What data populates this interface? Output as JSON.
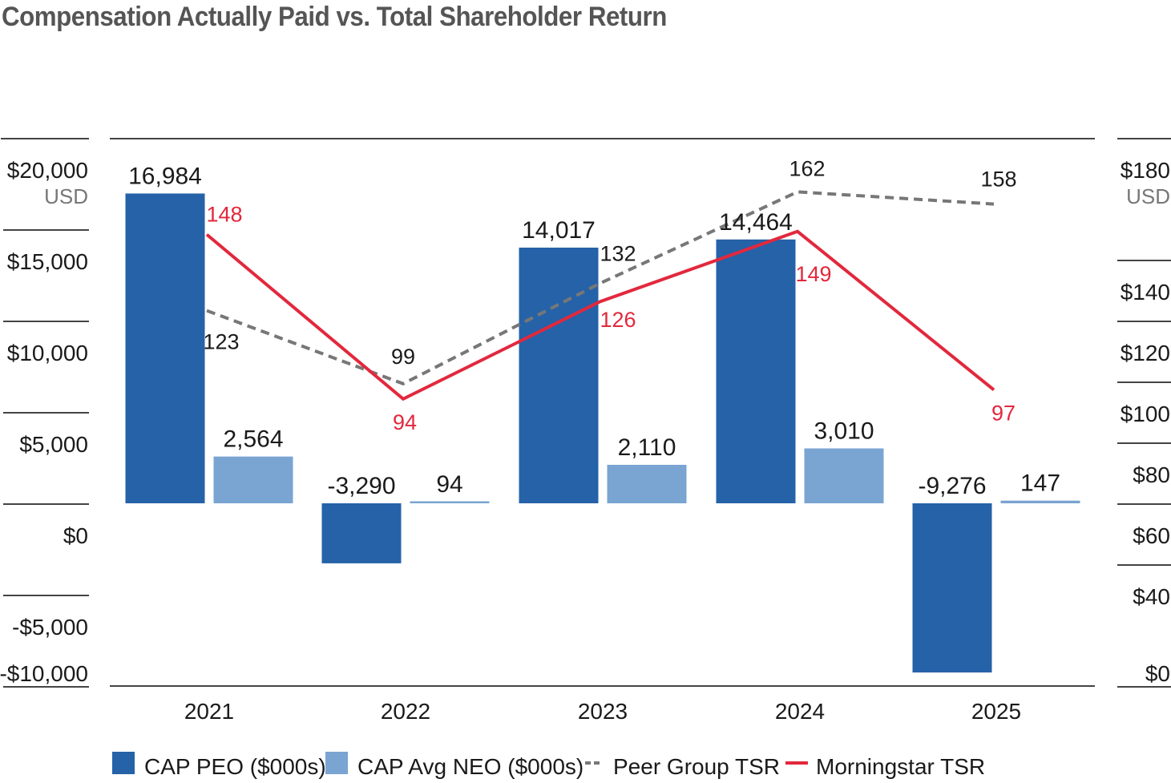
{
  "chart_data": {
    "type": "bar",
    "title": "Compensation Actually Paid vs. Total Shareholder Return",
    "categories": [
      "2021",
      "2022",
      "2023",
      "2024",
      "2025"
    ],
    "left_axis": {
      "unit": "USD",
      "ticks": [
        {
          "value": 20000,
          "label": "$20,000"
        },
        {
          "value": 15000,
          "label": "$15,000"
        },
        {
          "value": 10000,
          "label": "$10,000"
        },
        {
          "value": 5000,
          "label": "$5,000"
        },
        {
          "value": 0,
          "label": "$0"
        },
        {
          "value": -5000,
          "label": "-$5,000"
        },
        {
          "value": -10000,
          "label": "-$10,000"
        }
      ]
    },
    "right_axis": {
      "unit": "USD",
      "ticks": [
        {
          "value": 180,
          "label": "$180"
        },
        {
          "value": 140,
          "label": "$140"
        },
        {
          "value": 120,
          "label": "$120"
        },
        {
          "value": 100,
          "label": "$100"
        },
        {
          "value": 80,
          "label": "$80"
        },
        {
          "value": 60,
          "label": "$60"
        },
        {
          "value": 40,
          "label": "$40"
        },
        {
          "value": 0,
          "label": "$0"
        }
      ]
    },
    "bar_series": [
      {
        "name": "CAP PEO ($000s)",
        "color": "#2562a8",
        "values": [
          16984,
          -3290,
          14017,
          14464,
          -9276
        ],
        "labels": [
          "16,984",
          "-3,290",
          "14,017",
          "14,464",
          "-9,276"
        ]
      },
      {
        "name": "CAP Avg NEO ($000s)",
        "color": "#7aa4d2",
        "values": [
          2564,
          94,
          2110,
          3010,
          147
        ],
        "labels": [
          "2,564",
          "94",
          "2,110",
          "3,010",
          "147"
        ]
      }
    ],
    "line_series": [
      {
        "name": "Peer Group TSR",
        "color": "#777777",
        "style": "dashed",
        "values": [
          123,
          99,
          132,
          162,
          158
        ],
        "labels": [
          "123",
          "99",
          "132",
          "162",
          "158"
        ]
      },
      {
        "name": "Morningstar TSR",
        "color": "#e2283d",
        "style": "solid",
        "values": [
          148,
          94,
          126,
          149,
          97
        ],
        "labels": [
          "148",
          "94",
          "126",
          "149",
          "97"
        ]
      }
    ],
    "legend": {
      "position": "bottom"
    }
  }
}
